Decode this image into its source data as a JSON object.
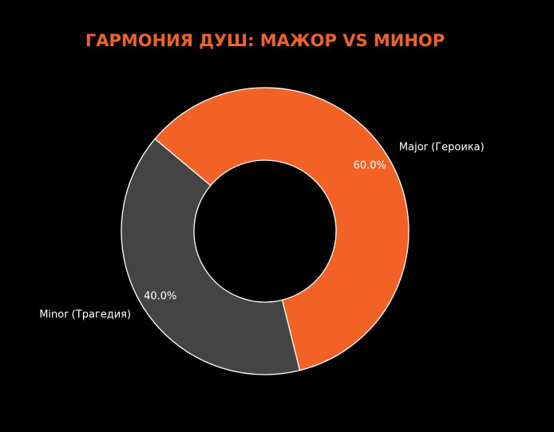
{
  "chart_data": {
    "type": "pie",
    "variant": "donut",
    "title": "ГАРМОНИЯ ДУШ: МАЖОР VS МИНОР",
    "categories": [
      "Major (Героика)",
      "Minor (Трагедия)"
    ],
    "values": [
      60.0,
      40.0
    ],
    "percent_labels": [
      "60.0%",
      "40.0%"
    ],
    "colors": [
      "#f26125",
      "#444444"
    ],
    "edge_color": "#ffffff",
    "title_color": "#f26125",
    "text_color": "#ffffff",
    "background": "#000000",
    "legend": "none"
  }
}
